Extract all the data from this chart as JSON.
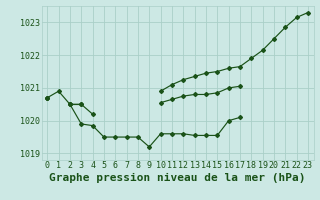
{
  "title": "Graphe pression niveau de la mer (hPa)",
  "background_color": "#cce8e4",
  "grid_color": "#aacfc8",
  "line_color": "#1a5218",
  "hours": [
    0,
    1,
    2,
    3,
    4,
    5,
    6,
    7,
    8,
    9,
    10,
    11,
    12,
    13,
    14,
    15,
    16,
    17,
    18,
    19,
    20,
    21,
    22,
    23
  ],
  "series1": [
    1020.7,
    1020.9,
    1020.5,
    1019.9,
    1019.85,
    1019.5,
    1019.5,
    1019.5,
    1019.5,
    1019.2,
    1019.6,
    1019.6,
    1019.6,
    1019.55,
    1019.55,
    1019.55,
    1020.0,
    1020.1,
    null,
    null,
    null,
    null,
    null,
    null
  ],
  "series2": [
    1020.7,
    null,
    1020.5,
    1020.5,
    1020.2,
    null,
    null,
    null,
    null,
    null,
    1020.55,
    1020.65,
    1020.75,
    1020.8,
    1020.8,
    1020.85,
    1021.0,
    1021.05,
    null,
    null,
    null,
    null,
    null,
    null
  ],
  "series3": [
    1020.7,
    null,
    1020.5,
    1020.5,
    null,
    null,
    null,
    null,
    null,
    null,
    1020.9,
    1021.1,
    1021.25,
    1021.35,
    1021.45,
    1021.5,
    1021.6,
    1021.65,
    1021.9,
    1022.15,
    1022.5,
    1022.85,
    1023.15,
    1023.3
  ],
  "ylim": [
    1018.8,
    1023.5
  ],
  "yticks": [
    1019,
    1020,
    1021,
    1022,
    1023
  ],
  "xtick_labels": [
    "0",
    "1",
    "2",
    "3",
    "4",
    "5",
    "6",
    "7",
    "8",
    "9",
    "10",
    "11",
    "12",
    "13",
    "14",
    "15",
    "16",
    "17",
    "18",
    "19",
    "20",
    "21",
    "22",
    "23"
  ],
  "title_fontsize": 8,
  "tick_fontsize": 6
}
